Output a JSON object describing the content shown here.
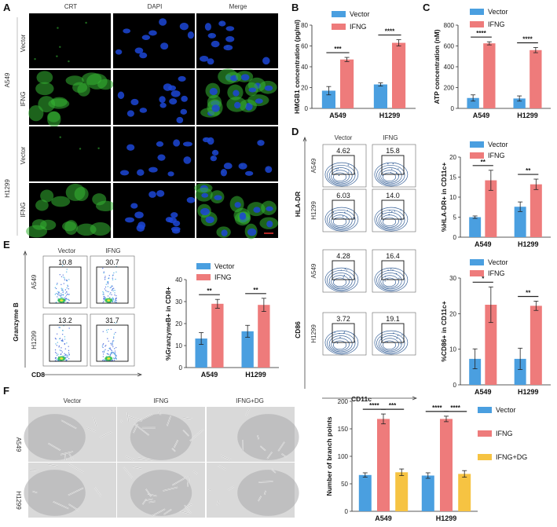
{
  "colors": {
    "vector": "#4a9fe0",
    "ifng": "#ee7b7b",
    "dg": "#f6c342",
    "green": "#34b533",
    "blue": "#1c46d6"
  },
  "panel_labels": [
    "A",
    "B",
    "C",
    "D",
    "E",
    "F"
  ],
  "panelA": {
    "columns": [
      "CRT",
      "DAPI",
      "Merge"
    ],
    "groups": [
      "A549",
      "H1299"
    ],
    "rows": [
      "Vector",
      "IFNG",
      "Vector",
      "IFNG"
    ]
  },
  "panelD": {
    "columns": [
      "Vector",
      "IFNG"
    ],
    "rows": [
      "A549",
      "H1299",
      "A549",
      "H1299"
    ],
    "y_labels": [
      "HLA-DR",
      "CD86"
    ],
    "x_label": "CD11c",
    "values": [
      [
        "4.62",
        "15.8"
      ],
      [
        "6.03",
        "14.0"
      ],
      [
        "4.28",
        "16.4"
      ],
      [
        "3.72",
        "19.1"
      ]
    ]
  },
  "panelE": {
    "columns": [
      "Vector",
      "IFNG"
    ],
    "rows": [
      "A549",
      "H1299"
    ],
    "y_label": "Granzyme B",
    "x_label": "CD8",
    "values": [
      [
        "10.8",
        "30.7"
      ],
      [
        "13.2",
        "31.7"
      ]
    ]
  },
  "panelF": {
    "columns": [
      "Vector",
      "IFNG",
      "IFNG+DG"
    ],
    "rows": [
      "A549",
      "H1299"
    ]
  },
  "chart_data": [
    {
      "id": "B",
      "type": "bar",
      "categories": [
        "A549",
        "H1299"
      ],
      "series": [
        {
          "name": "Vector",
          "values": [
            17,
            23
          ],
          "errors": [
            4,
            1.5
          ]
        },
        {
          "name": "IFNG",
          "values": [
            47,
            63
          ],
          "errors": [
            2,
            3
          ]
        }
      ],
      "ylabel": "HMGB1 concentration (pg/ml)",
      "ylim": [
        0,
        80
      ],
      "yticks": [
        0,
        20,
        40,
        60,
        80
      ],
      "significance": [
        "***",
        "****"
      ],
      "legend": "top"
    },
    {
      "id": "C",
      "type": "bar",
      "categories": [
        "A549",
        "H1299"
      ],
      "series": [
        {
          "name": "Vector",
          "values": [
            100,
            95
          ],
          "errors": [
            30,
            25
          ]
        },
        {
          "name": "IFNG",
          "values": [
            625,
            560
          ],
          "errors": [
            15,
            25
          ]
        }
      ],
      "ylabel": "ATP concentration (nM)",
      "ylim": [
        0,
        800
      ],
      "yticks": [
        0,
        200,
        400,
        600,
        800
      ],
      "significance": [
        "****",
        "****"
      ],
      "legend": "top"
    },
    {
      "id": "D-HLA",
      "type": "bar",
      "categories": [
        "A549",
        "H1299"
      ],
      "series": [
        {
          "name": "Vector",
          "values": [
            5,
            7.6
          ],
          "errors": [
            0.3,
            1.2
          ]
        },
        {
          "name": "IFNG",
          "values": [
            14.2,
            13.2
          ],
          "errors": [
            2.5,
            1.3
          ]
        }
      ],
      "ylabel": "%HLA-DR+ in CD11c+",
      "ylim": [
        0,
        20
      ],
      "yticks": [
        0,
        5,
        10,
        15,
        20
      ],
      "significance": [
        "**",
        "**"
      ],
      "legend": "top"
    },
    {
      "id": "D-CD86",
      "type": "bar",
      "categories": [
        "A549",
        "H1299"
      ],
      "series": [
        {
          "name": "Vector",
          "values": [
            7.3,
            7.3
          ],
          "errors": [
            2.8,
            3
          ]
        },
        {
          "name": "IFNG",
          "values": [
            22.5,
            22.2
          ],
          "errors": [
            5,
            1.3
          ]
        }
      ],
      "ylabel": "%CD86+ in CD11c+",
      "ylim": [
        0,
        30
      ],
      "yticks": [
        0,
        10,
        20,
        30
      ],
      "significance": [
        "*",
        "**"
      ],
      "legend": "top"
    },
    {
      "id": "E",
      "type": "bar",
      "categories": [
        "A549",
        "H1299"
      ],
      "series": [
        {
          "name": "Vector",
          "values": [
            13.2,
            16.5
          ],
          "errors": [
            2.7,
            2.7
          ]
        },
        {
          "name": "IFNG",
          "values": [
            29,
            28.5
          ],
          "errors": [
            2,
            3
          ]
        }
      ],
      "ylabel": "%GranzymeB+ in CD8+",
      "ylim": [
        0,
        40
      ],
      "yticks": [
        0,
        10,
        20,
        30,
        40
      ],
      "significance": [
        "**",
        "**"
      ],
      "legend": "top"
    },
    {
      "id": "F",
      "type": "bar",
      "categories": [
        "A549",
        "H1299"
      ],
      "series": [
        {
          "name": "Vector",
          "values": [
            66,
            65
          ],
          "errors": [
            4,
            5
          ]
        },
        {
          "name": "IFNG",
          "values": [
            168,
            168
          ],
          "errors": [
            9,
            5
          ]
        },
        {
          "name": "IFNG+DG",
          "values": [
            71,
            68
          ],
          "errors": [
            6,
            6
          ]
        }
      ],
      "ylabel": "Number of branch points",
      "ylim": [
        0,
        200
      ],
      "yticks": [
        0,
        50,
        100,
        150,
        200
      ],
      "significance": [
        "****",
        "***",
        "****",
        "****"
      ],
      "legend": "right"
    }
  ]
}
